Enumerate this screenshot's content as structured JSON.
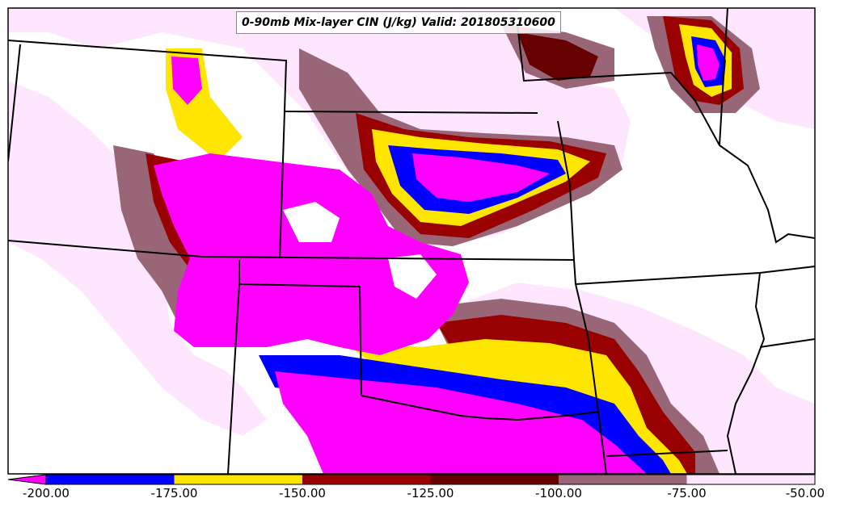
{
  "title": "0-90mb Mix-layer CIN (J/kg) Valid: 201805310600",
  "colorbar": {
    "ticks": [
      "-200.00",
      "-175.00",
      "-150.00",
      "-125.00",
      "-100.00",
      "-75.00",
      "-50.00"
    ],
    "bins": [
      {
        "from": -200,
        "to": -175,
        "color": "#0000ff"
      },
      {
        "from": -175,
        "to": -150,
        "color": "#ffe600"
      },
      {
        "from": -150,
        "to": -125,
        "color": "#990000"
      },
      {
        "from": -125,
        "to": -100,
        "color": "#660000"
      },
      {
        "from": -100,
        "to": -75,
        "color": "#996677"
      },
      {
        "from": -75,
        "to": -50,
        "color": "#ffe6ff"
      }
    ],
    "extend_min_color": "#ff00ff"
  },
  "colors": {
    "magenta": "#ff00ff",
    "blue": "#0000ff",
    "yellow": "#ffe600",
    "darkred": "#990000",
    "maroon": "#660000",
    "mauve": "#996677",
    "pink": "#ffe6ff",
    "border": "#000000"
  }
}
